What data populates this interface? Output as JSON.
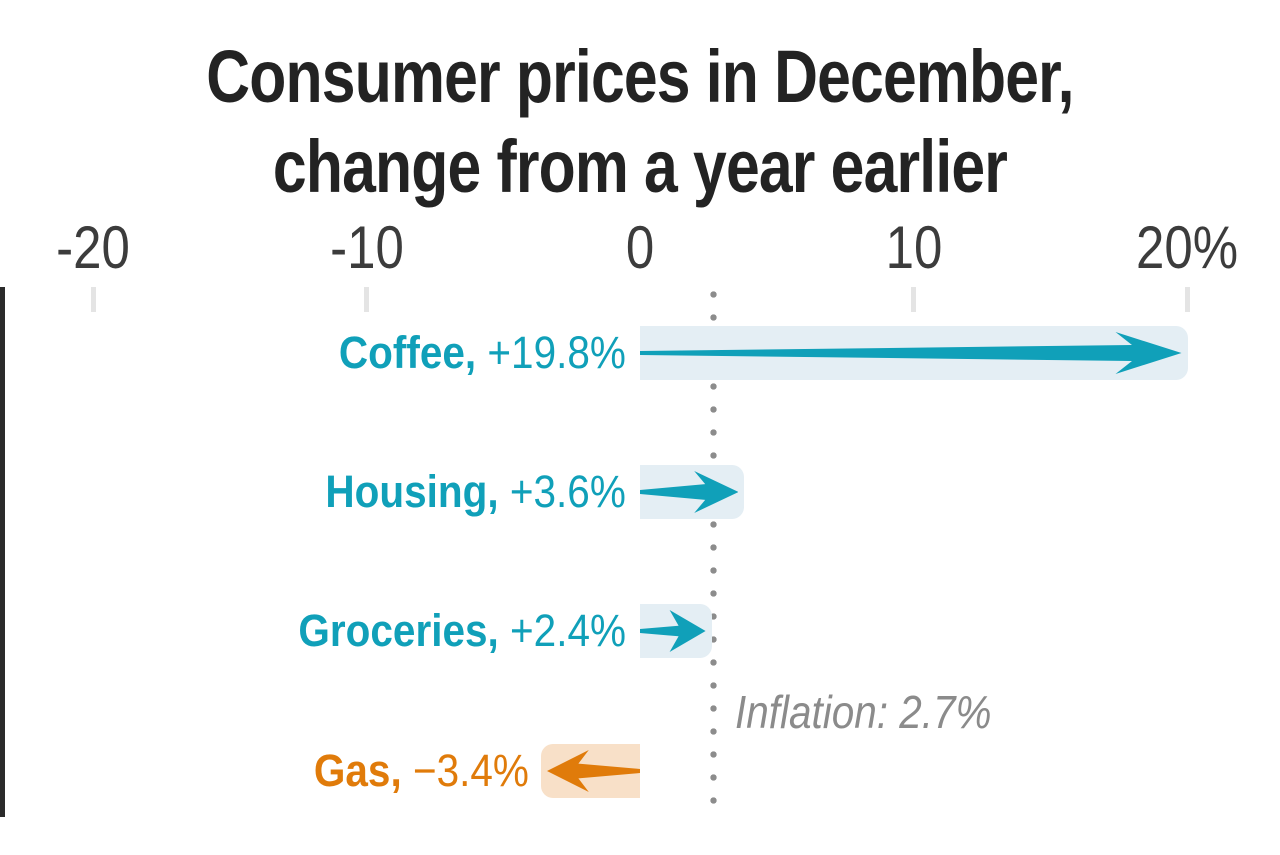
{
  "page": {
    "background": "#ffffff"
  },
  "title": {
    "line1": "Consumer prices in December,",
    "line2": "change from a year earlier"
  },
  "chart_data": {
    "type": "bar",
    "orientation": "horizontal",
    "style": "arrow-bars",
    "title": "Consumer prices in December, change from a year earlier",
    "unit": "%",
    "categories": [
      "Coffee",
      "Housing",
      "Groceries",
      "Gas"
    ],
    "values": [
      19.8,
      3.6,
      2.4,
      -3.4
    ],
    "rows": [
      {
        "category": "Coffee",
        "label": "Coffee,",
        "value": 19.8,
        "value_label": "+19.8%",
        "color_key": "teal"
      },
      {
        "category": "Housing",
        "label": "Housing,",
        "value": 3.6,
        "value_label": "+3.6%",
        "color_key": "teal"
      },
      {
        "category": "Groceries",
        "label": "Groceries,",
        "value": 2.4,
        "value_label": "+2.4%",
        "color_key": "teal"
      },
      {
        "category": "Gas",
        "label": "Gas,",
        "value": -3.4,
        "value_label": "−3.4%",
        "color_key": "orange"
      }
    ],
    "x_axis": {
      "ticks": [
        -20,
        -10,
        0,
        10,
        20
      ],
      "tick_labels": [
        "-20",
        "-10",
        "0",
        "10",
        "20%"
      ],
      "range": [
        -23.4,
        23.4
      ]
    },
    "reference_line": {
      "value": 2.7,
      "label": "Inflation: 2.7%"
    },
    "grid": false,
    "legend": false,
    "colors": {
      "teal": "#10A0B9",
      "teal_band": "#E4EEF4",
      "orange": "#E07B0A",
      "orange_band": "#F8E0C8",
      "axis": "#2B2B2B",
      "tick": "#E4E4E4",
      "reference_dots": "#8C8C8C",
      "annotation_text": "#8B8B8B",
      "title_text": "#232323",
      "tick_label_text": "#3C3C3C"
    }
  }
}
